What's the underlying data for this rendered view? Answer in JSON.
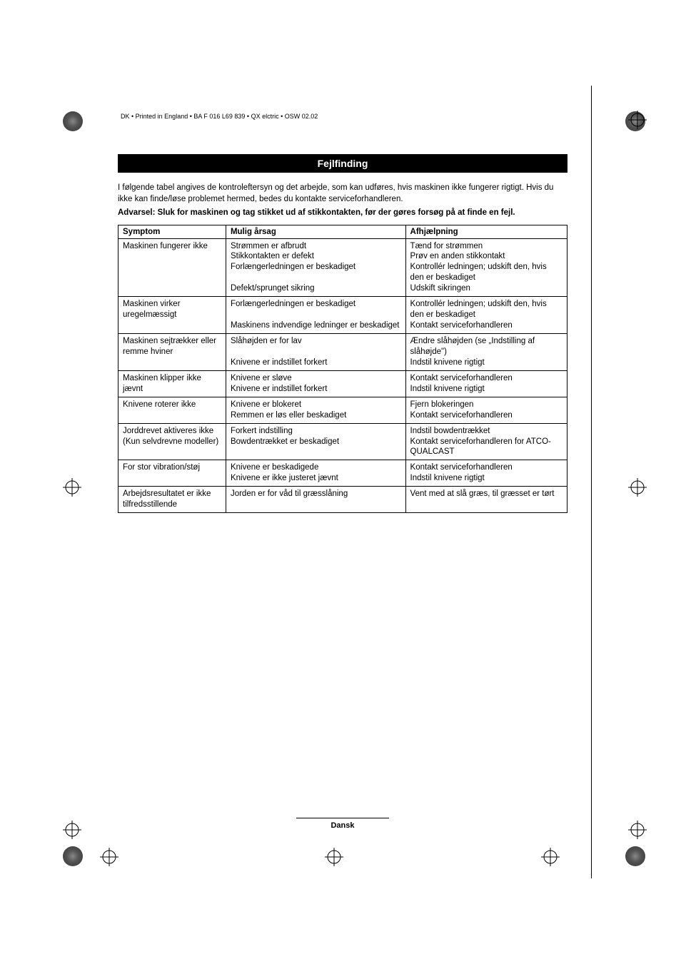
{
  "meta_line": "DK • Printed in England • BA F 016 L69 839 • QX elctric • OSW 02.02",
  "section_title": "Fejlfinding",
  "intro_paragraph": "I følgende tabel angives de kontroleftersyn og det arbejde, som kan udføres, hvis maskinen ikke fungerer rigtigt. Hvis du ikke kan finde/løse problemet hermed, bedes du kontakte serviceforhandleren.",
  "warning_paragraph": "Advarsel: Sluk for maskinen og tag stikket ud af stikkontakten, før der gøres forsøg på at finde en fejl.",
  "table": {
    "headers": [
      "Symptom",
      "Mulig årsag",
      "Afhjælpning"
    ],
    "rows": [
      {
        "symptom": "Maskinen fungerer ikke",
        "cause": "Strømmen er afbrudt\nStikkontakten er defekt\nForlængerledningen er beskadiget\n\nDefekt/sprunget sikring",
        "remedy": "Tænd for strømmen\nPrøv en anden stikkontakt\nKontrollér ledningen; udskift den, hvis den er beskadiget\nUdskift sikringen"
      },
      {
        "symptom": "Maskinen virker uregelmæssigt",
        "cause": "Forlængerledningen er beskadiget\n\nMaskinens indvendige ledninger er beskadiget",
        "remedy": "Kontrollér ledningen; udskift den, hvis den er beskadiget\nKontakt serviceforhandleren"
      },
      {
        "symptom": "Maskinen sejtrækker eller remme hviner",
        "cause": "Slåhøjden er for lav\n\nKnivene er indstillet forkert",
        "remedy": "Ændre slåhøjden (se „Indstilling af slåhøjde\")\nIndstil knivene rigtigt"
      },
      {
        "symptom": "Maskinen klipper ikke jævnt",
        "cause": "Knivene er sløve\nKnivene er indstillet forkert",
        "remedy": "Kontakt serviceforhandleren\nIndstil knivene rigtigt"
      },
      {
        "symptom": "Knivene roterer ikke",
        "cause": "Knivene er blokeret\nRemmen er løs eller beskadiget",
        "remedy": "Fjern blokeringen\nKontakt serviceforhandleren"
      },
      {
        "symptom": "Jorddrevet aktiveres ikke (Kun selvdrevne modeller)",
        "cause": "Forkert indstilling\nBowdentrækket er beskadiget",
        "remedy": "Indstil bowdentrækket\nKontakt serviceforhandleren for ATCO-QUALCAST"
      },
      {
        "symptom": "For stor vibration/støj",
        "cause": "Knivene er beskadigede\nKnivene er ikke justeret jævnt",
        "remedy": "Kontakt serviceforhandleren\nIndstil knivene rigtigt"
      },
      {
        "symptom": "Arbejdsresultatet er ikke tilfredsstillende",
        "cause": "Jorden er for våd til græsslåning",
        "remedy": "Vent med at slå græs, til græsset er tørt"
      }
    ]
  },
  "footer_language": "Dansk"
}
